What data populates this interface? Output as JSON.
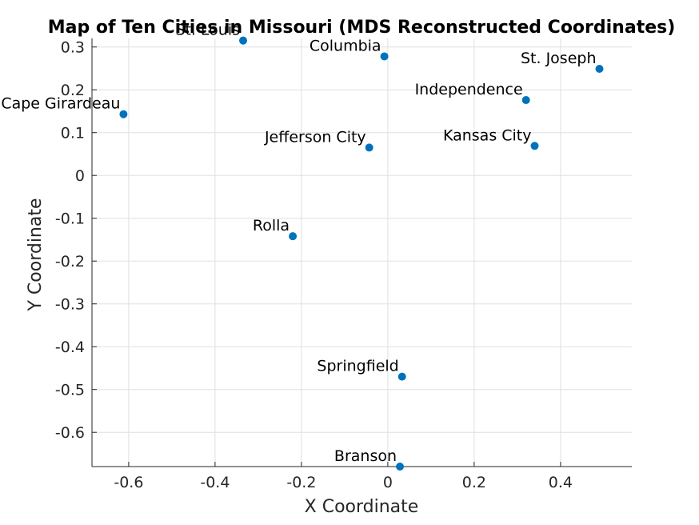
{
  "chart_data": {
    "type": "scatter",
    "title": "Map of Ten Cities in Missouri (MDS Reconstructed Coordinates)",
    "xlabel": "X Coordinate",
    "ylabel": "Y Coordinate",
    "xlim": [
      -0.685,
      0.565
    ],
    "ylim": [
      -0.68,
      0.32
    ],
    "xticks": [
      -0.6,
      -0.4,
      -0.2,
      0,
      0.2,
      0.4
    ],
    "xtick_labels": [
      "-0.6",
      "-0.4",
      "-0.2",
      "0",
      "0.2",
      "0.4"
    ],
    "yticks": [
      -0.6,
      -0.5,
      -0.4,
      -0.3,
      -0.2,
      -0.1,
      0,
      0.1,
      0.2,
      0.3
    ],
    "ytick_labels": [
      "-0.6",
      "-0.5",
      "-0.4",
      "-0.3",
      "-0.2",
      "-0.1",
      "0",
      "0.1",
      "0.2",
      "0.3"
    ],
    "grid": true,
    "marker_color": "#0072BD",
    "points": [
      {
        "name": "St. Louis",
        "x": -0.335,
        "y": 0.315
      },
      {
        "name": "Columbia",
        "x": -0.008,
        "y": 0.278
      },
      {
        "name": "St. Joseph",
        "x": 0.49,
        "y": 0.249
      },
      {
        "name": "Independence",
        "x": 0.32,
        "y": 0.176
      },
      {
        "name": "Cape Girardeau",
        "x": -0.612,
        "y": 0.143
      },
      {
        "name": "Jefferson City",
        "x": -0.043,
        "y": 0.065
      },
      {
        "name": "Kansas City",
        "x": 0.34,
        "y": 0.069
      },
      {
        "name": "Rolla",
        "x": -0.22,
        "y": -0.142
      },
      {
        "name": "Springfield",
        "x": 0.033,
        "y": -0.47
      },
      {
        "name": "Branson",
        "x": 0.028,
        "y": -0.68
      }
    ]
  }
}
